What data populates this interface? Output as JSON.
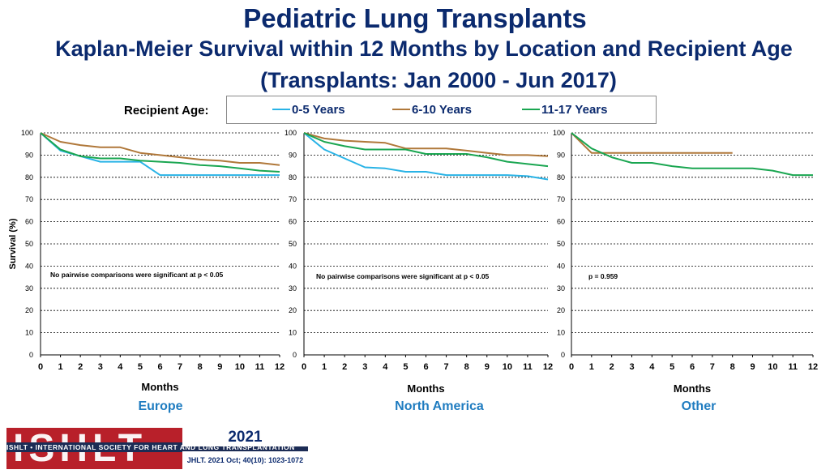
{
  "header": {
    "title": "Pediatric Lung Transplants",
    "subtitle": "Kaplan-Meier Survival within 12 Months by Location and Recipient Age",
    "subtitle2": "(Transplants: Jan 2000 - Jun 2017)"
  },
  "legend": {
    "label": "Recipient Age:",
    "items": [
      {
        "name": "0-5 Years",
        "color": "#29b3e6"
      },
      {
        "name": "6-10 Years",
        "color": "#b0783a"
      },
      {
        "name": "11-17 Years",
        "color": "#1aa651"
      }
    ]
  },
  "footer": {
    "logo_text": "ISHLT",
    "logo_bar": "ISHLT • INTERNATIONAL SOCIETY FOR HEART AND LUNG TRANSPLANTATION",
    "year": "2021",
    "citation": "JHLT. 2021 Oct; 40(10): 1023-1072"
  },
  "chart_data": [
    {
      "type": "line",
      "title": "Europe",
      "xlabel": "Months",
      "ylabel": "Survival (%)",
      "xlim": [
        0,
        12
      ],
      "ylim": [
        0,
        100
      ],
      "xticks": [
        "0",
        "1",
        "2",
        "3",
        "4",
        "5",
        "6",
        "7",
        "8",
        "9",
        "10",
        "11",
        "12"
      ],
      "yticks": [
        "0",
        "10",
        "20",
        "30",
        "40",
        "50",
        "60",
        "70",
        "80",
        "90",
        "100"
      ],
      "annotation": "No pairwise comparisons were significant at p < 0.05",
      "series": [
        {
          "name": "0-5 Years",
          "x": [
            0,
            1,
            2,
            3,
            4,
            5,
            6,
            7,
            8,
            9,
            10,
            11,
            12
          ],
          "values": [
            100,
            92,
            89.5,
            87,
            87,
            87,
            81,
            81,
            81,
            81,
            81,
            81,
            81
          ]
        },
        {
          "name": "6-10 Years",
          "x": [
            0,
            1,
            2,
            3,
            4,
            5,
            6,
            7,
            8,
            9,
            10,
            11,
            12
          ],
          "values": [
            100,
            96,
            94.5,
            93.5,
            93.5,
            91,
            90,
            89,
            88,
            87.5,
            86.5,
            86.5,
            85.5
          ]
        },
        {
          "name": "11-17 Years",
          "x": [
            0,
            1,
            2,
            3,
            4,
            5,
            6,
            7,
            8,
            9,
            10,
            11,
            12
          ],
          "values": [
            100,
            92.5,
            89.5,
            88.5,
            88.5,
            87.5,
            87,
            86.5,
            85.5,
            85,
            84,
            83,
            82.5
          ]
        }
      ]
    },
    {
      "type": "line",
      "title": "North America",
      "xlabel": "Months",
      "ylabel": "",
      "xlim": [
        0,
        12
      ],
      "ylim": [
        0,
        100
      ],
      "xticks": [
        "0",
        "1",
        "2",
        "3",
        "4",
        "5",
        "6",
        "7",
        "8",
        "9",
        "10",
        "11",
        "12"
      ],
      "yticks": [
        "0",
        "10",
        "20",
        "30",
        "40",
        "50",
        "60",
        "70",
        "80",
        "90",
        "100"
      ],
      "annotation": "No pairwise comparisons were significant at p < 0.05",
      "series": [
        {
          "name": "0-5 Years",
          "x": [
            0,
            1,
            2,
            3,
            4,
            5,
            6,
            7,
            8,
            9,
            10,
            11,
            12
          ],
          "values": [
            100,
            92.5,
            88.5,
            84.5,
            84,
            82.5,
            82.5,
            81,
            81,
            81,
            81,
            80.5,
            79
          ]
        },
        {
          "name": "6-10 Years",
          "x": [
            0,
            1,
            2,
            3,
            4,
            5,
            6,
            7,
            8,
            9,
            10,
            11,
            12
          ],
          "values": [
            100,
            97.5,
            96.5,
            96,
            95.5,
            93,
            93,
            93,
            92,
            91,
            90,
            90,
            89.5
          ]
        },
        {
          "name": "11-17 Years",
          "x": [
            0,
            1,
            2,
            3,
            4,
            5,
            6,
            7,
            8,
            9,
            10,
            11,
            12
          ],
          "values": [
            100,
            96,
            94,
            92.5,
            92.5,
            92.5,
            90.5,
            90.5,
            90.5,
            89,
            87,
            86,
            85
          ]
        }
      ]
    },
    {
      "type": "line",
      "title": "Other",
      "xlabel": "Months",
      "ylabel": "",
      "xlim": [
        0,
        12
      ],
      "ylim": [
        0,
        100
      ],
      "xticks": [
        "0",
        "1",
        "2",
        "3",
        "4",
        "5",
        "6",
        "7",
        "8",
        "9",
        "10",
        "11",
        "12"
      ],
      "yticks": [
        "0",
        "10",
        "20",
        "30",
        "40",
        "50",
        "60",
        "70",
        "80",
        "90",
        "100"
      ],
      "annotation": "p = 0.959",
      "series": [
        {
          "name": "0-5 Years",
          "x": [],
          "values": []
        },
        {
          "name": "6-10 Years",
          "x": [
            0,
            1,
            2,
            3,
            4,
            5,
            6,
            7,
            8
          ],
          "values": [
            100,
            91,
            91,
            91,
            91,
            91,
            91,
            91,
            91
          ]
        },
        {
          "name": "11-17 Years",
          "x": [
            0,
            1,
            2,
            3,
            4,
            5,
            6,
            7,
            8,
            9,
            10,
            11,
            12
          ],
          "values": [
            100,
            93,
            89,
            86.5,
            86.5,
            85,
            84,
            84,
            84,
            84,
            83,
            81,
            81
          ]
        }
      ]
    }
  ]
}
